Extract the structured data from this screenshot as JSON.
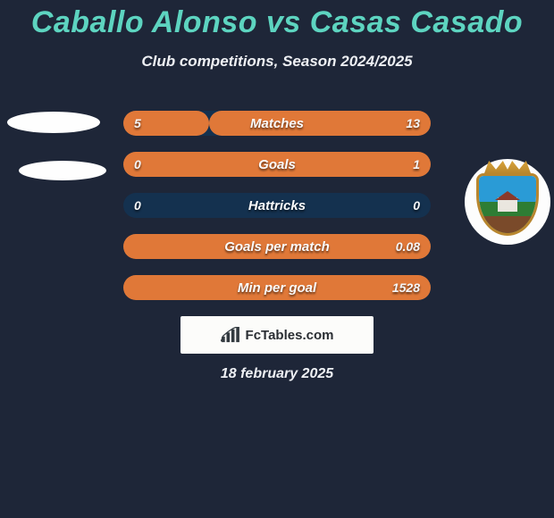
{
  "colors": {
    "background": "#1e2638",
    "title": "#5dd4c0",
    "text_light": "#eef0f4",
    "bar_bg": "#14314f",
    "bar_fill": "#e07838",
    "white": "#fefefe"
  },
  "title": "Caballo Alonso vs Casas Casado",
  "subtitle": "Club competitions, Season 2024/2025",
  "rows": [
    {
      "label": "Matches",
      "left": "5",
      "right": "13",
      "left_pct": 28,
      "right_pct": 72
    },
    {
      "label": "Goals",
      "left": "0",
      "right": "1",
      "left_pct": 0,
      "right_pct": 100
    },
    {
      "label": "Hattricks",
      "left": "0",
      "right": "0",
      "left_pct": 0,
      "right_pct": 0
    },
    {
      "label": "Goals per match",
      "left": "",
      "right": "0.08",
      "left_pct": 0,
      "right_pct": 100
    },
    {
      "label": "Min per goal",
      "left": "",
      "right": "1528",
      "left_pct": 0,
      "right_pct": 100
    }
  ],
  "footer": {
    "site": "FcTables.com"
  },
  "date": "18 february 2025"
}
